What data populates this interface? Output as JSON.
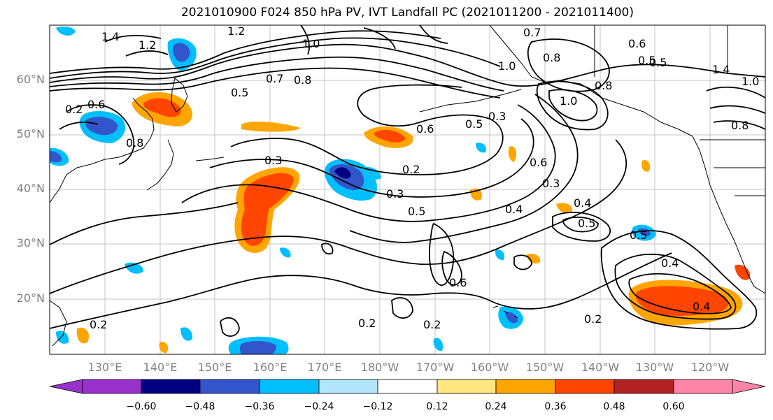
{
  "title": "2021010900 F024 850 hPa PV, IVT Landfall PC (2021011200 - 2021011400)",
  "lat_labels": [
    "60°N",
    "50°N",
    "40°N",
    "30°N",
    "20°N"
  ],
  "lon_labels": [
    "130°E",
    "140°E",
    "150°E",
    "160°E",
    "170°E",
    "180°W",
    "170°W",
    "160°W",
    "150°W",
    "140°W",
    "130°W",
    "120°W"
  ],
  "contour_labels": [
    "1.4",
    "1.2",
    "1.2",
    "1.0",
    "0.7",
    "0.6",
    "0.5",
    "0.8",
    "0.7",
    "0.5",
    "1.0",
    "0.6",
    "0.3",
    "0.5",
    "0.8",
    "1.0",
    "0.2",
    "0.8",
    "0.6",
    "0.3",
    "0.2",
    "0.3",
    "0.5",
    "0.4",
    "0.6",
    "0.3",
    "0.4",
    "0.5",
    "0.6",
    "0.5",
    "0.4",
    "0.4",
    "0.2",
    "0.2",
    "0.2",
    "0.2",
    "0.8",
    "1.4",
    "1.0",
    "0.5",
    "0.8"
  ],
  "colorbar": {
    "ticks": [
      "−0.60",
      "−0.48",
      "−0.36",
      "−0.24",
      "−0.12",
      "0.12",
      "0.24",
      "0.36",
      "0.48",
      "0.60"
    ],
    "colors": [
      "#9932cc",
      "#000080",
      "#3355cc",
      "#00bfff",
      "#b3e5fc",
      "#ffffff",
      "#ffe680",
      "#ffa500",
      "#ff4500",
      "#b22222",
      "#ff85a8"
    ]
  },
  "grid": true
}
